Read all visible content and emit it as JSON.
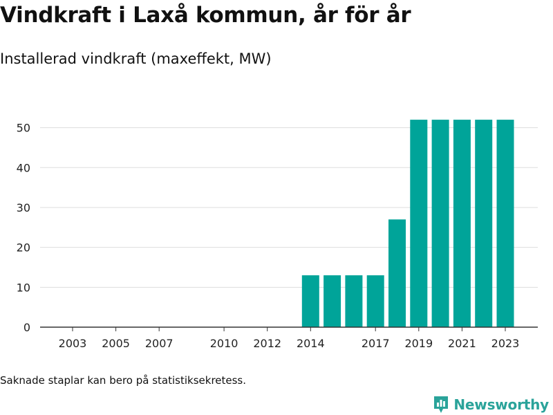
{
  "title": "Vindkraft i Laxå kommun, år för år",
  "subtitle": "Installerad vindkraft (maxeffekt, MW)",
  "note": "Saknade staplar kan bero på statistiksekretess.",
  "brand": {
    "name": "Newsworthy",
    "icon": "newsworthy-logo-icon"
  },
  "colors": {
    "bar": "#00a499",
    "grid": "#dddddd",
    "axis": "#333333",
    "brand": "#2aa39a"
  },
  "chart_data": {
    "type": "bar",
    "title": "Vindkraft i Laxå kommun, år för år",
    "subtitle": "Installerad vindkraft (maxeffekt, MW)",
    "xlabel": "",
    "ylabel": "",
    "categories": [
      "2003",
      "2004",
      "2005",
      "2006",
      "2007",
      "2008",
      "2009",
      "2010",
      "2011",
      "2012",
      "2013",
      "2014",
      "2015",
      "2016",
      "2017",
      "2018",
      "2019",
      "2020",
      "2021",
      "2022",
      "2023"
    ],
    "values": [
      0,
      0,
      0,
      0,
      0,
      0,
      0,
      0,
      0,
      0,
      0,
      13,
      13,
      13,
      13,
      27,
      52,
      52,
      52,
      52,
      52
    ],
    "x_tick_labels": [
      "2003",
      "2005",
      "2007",
      "2010",
      "2012",
      "2014",
      "2017",
      "2019",
      "2021",
      "2023"
    ],
    "y_ticks": [
      0,
      10,
      20,
      30,
      40,
      50
    ],
    "ylim": [
      0,
      56
    ],
    "grid": true,
    "legend": "none"
  }
}
